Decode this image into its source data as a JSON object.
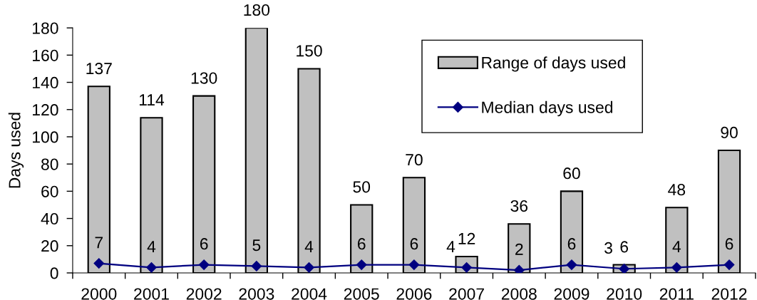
{
  "chart_data": {
    "type": "bar",
    "ylabel": "Days used",
    "categories": [
      "2000",
      "2001",
      "2002",
      "2003",
      "2004",
      "2005",
      "2006",
      "2007",
      "2008",
      "2009",
      "2010",
      "2011",
      "2012"
    ],
    "series": [
      {
        "name": "Range of days used",
        "color": "#c0c0c0",
        "values": [
          137,
          114,
          130,
          180,
          150,
          50,
          70,
          12,
          36,
          60,
          6,
          48,
          90
        ]
      },
      {
        "name": "Median days used",
        "type": "line",
        "color": "#000080",
        "marker": "diamond",
        "line_style": "solid",
        "values": [
          7,
          4,
          6,
          5,
          4,
          6,
          6,
          4,
          2,
          6,
          3,
          4,
          6
        ]
      }
    ],
    "ylim": [
      0,
      180
    ],
    "yticks": [
      0,
      20,
      40,
      60,
      80,
      100,
      120,
      140,
      160,
      180
    ],
    "data_labels": true,
    "legend": "top right",
    "grid": false
  }
}
